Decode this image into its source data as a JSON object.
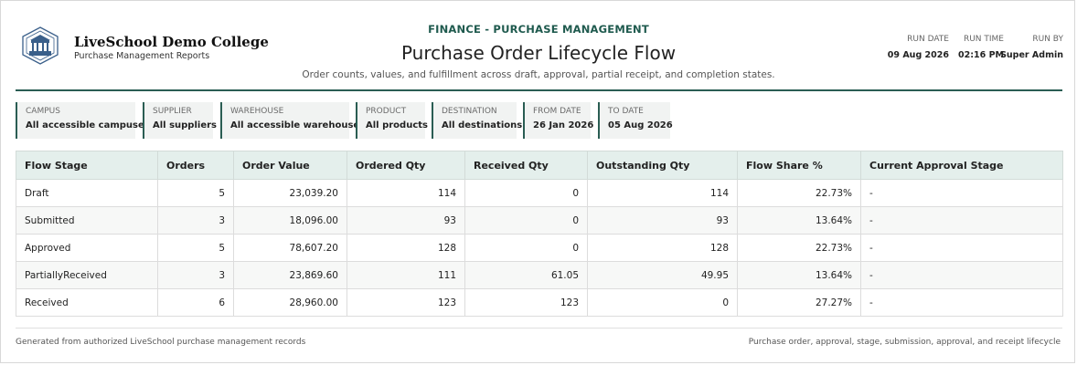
{
  "brand": {
    "college_name": "LiveSchool Demo College",
    "college_subtitle": "Purchase Management Reports",
    "accent_color": "#2a5d53",
    "logo_icon": "college-crest-icon"
  },
  "report": {
    "eyebrow": "FINANCE - PURCHASE MANAGEMENT",
    "title": "Purchase Order Lifecycle Flow",
    "subtitle": "Order counts, values, and fulfillment across draft, approval, partial receipt, and completion states."
  },
  "run_info": {
    "run_date_label": "RUN DATE",
    "run_date": "09 Aug 2026",
    "run_time_label": "RUN TIME",
    "run_time": "02:16 PM",
    "run_by_label": "RUN BY",
    "run_by": "Super Admin"
  },
  "filters": [
    {
      "label": "CAMPUS",
      "value": "All accessible campuses"
    },
    {
      "label": "SUPPLIER",
      "value": "All suppliers"
    },
    {
      "label": "WAREHOUSE",
      "value": "All accessible warehouses"
    },
    {
      "label": "PRODUCT",
      "value": "All products"
    },
    {
      "label": "DESTINATION",
      "value": "All destinations"
    },
    {
      "label": "FROM DATE",
      "value": "26 Jan 2026"
    },
    {
      "label": "TO DATE",
      "value": "05 Aug 2026"
    }
  ],
  "table": {
    "columns": [
      "Flow Stage",
      "Orders",
      "Order Value",
      "Ordered Qty",
      "Received Qty",
      "Outstanding Qty",
      "Flow Share %",
      "Current Approval Stage"
    ],
    "rows": [
      [
        "Draft",
        "5",
        "23,039.20",
        "114",
        "0",
        "114",
        "22.73%",
        "-"
      ],
      [
        "Submitted",
        "3",
        "18,096.00",
        "93",
        "0",
        "93",
        "13.64%",
        "-"
      ],
      [
        "Approved",
        "5",
        "78,607.20",
        "128",
        "0",
        "128",
        "22.73%",
        "-"
      ],
      [
        "PartiallyReceived",
        "3",
        "23,869.60",
        "111",
        "61.05",
        "49.95",
        "13.64%",
        "-"
      ],
      [
        "Received",
        "6",
        "28,960.00",
        "123",
        "123",
        "0",
        "27.27%",
        "-"
      ]
    ]
  },
  "footer": {
    "left": "Generated from authorized LiveSchool purchase management records",
    "right": "Purchase order, approval, stage, submission, approval, and receipt lifecycle"
  }
}
